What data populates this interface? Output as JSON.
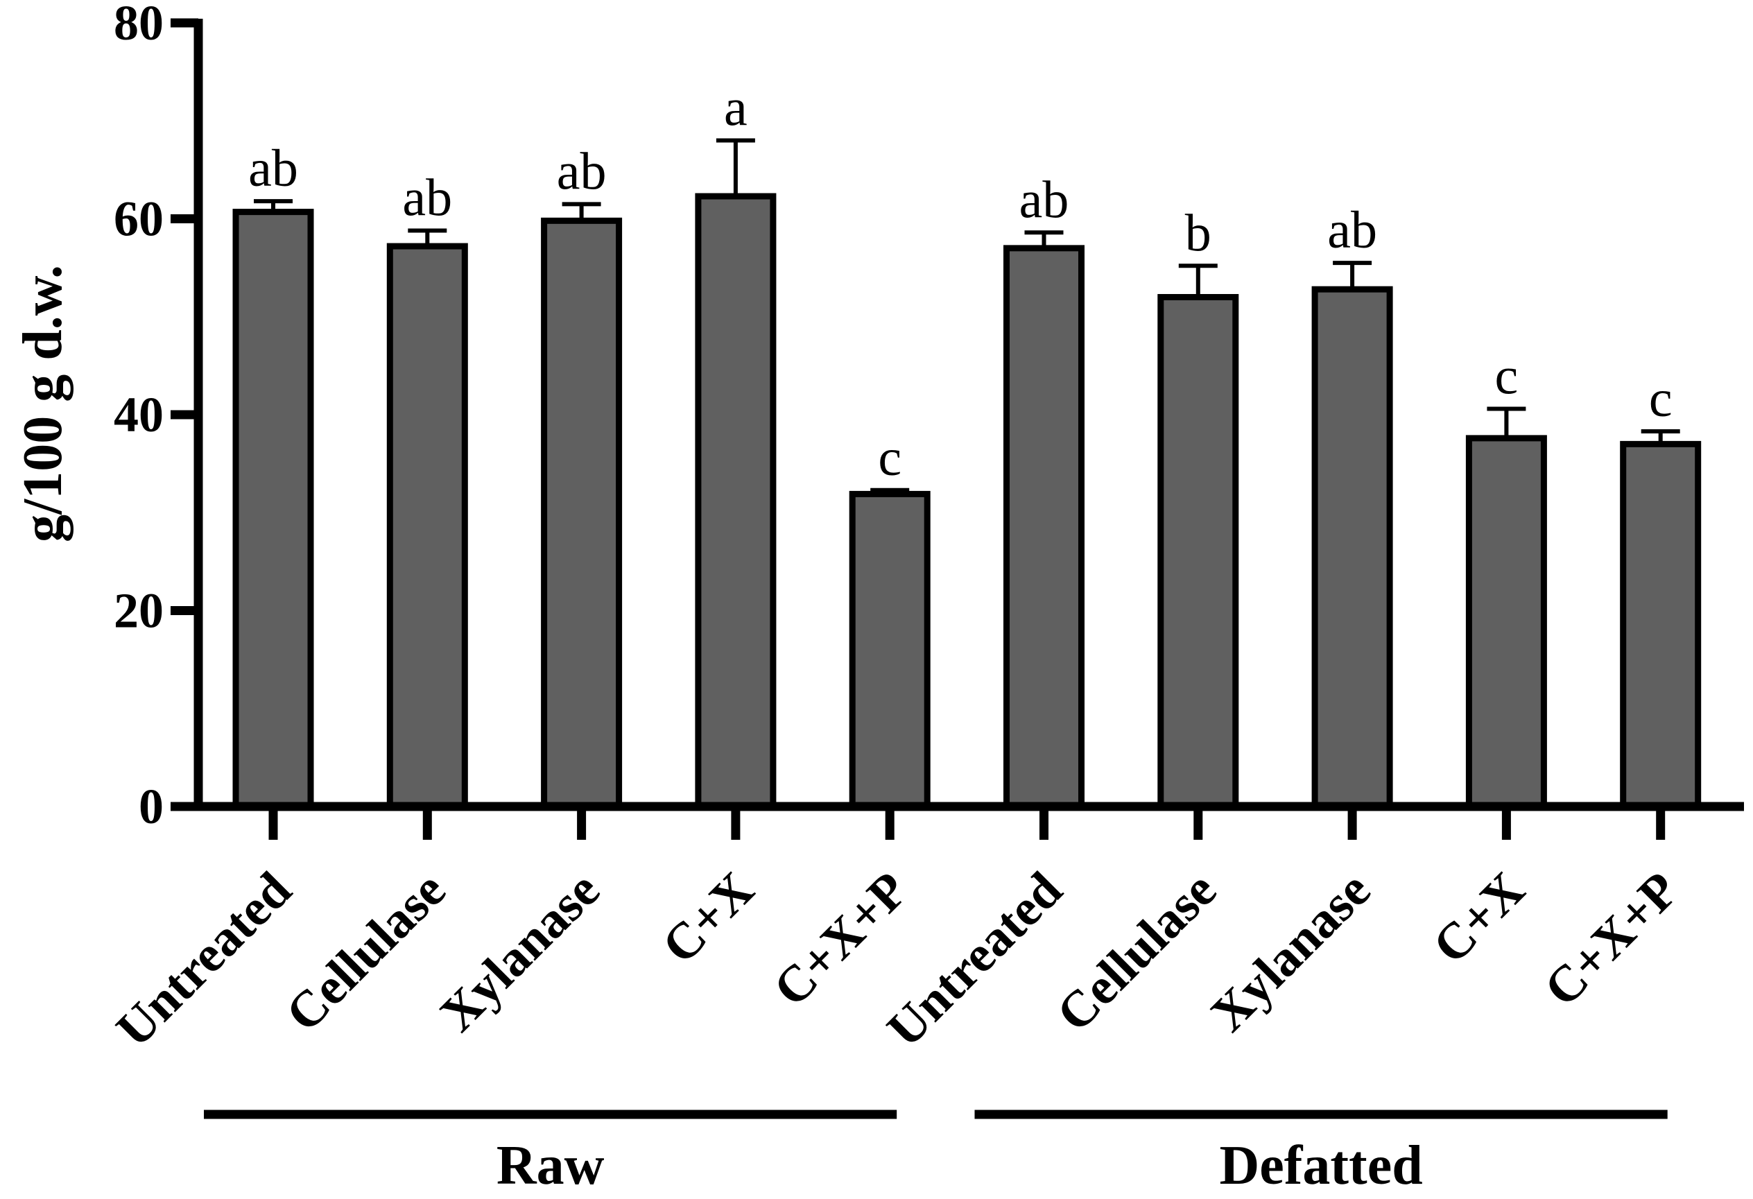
{
  "chart_data": {
    "type": "bar",
    "title": "",
    "xlabel": "",
    "ylabel": "g/100 g d.w.",
    "ylim": [
      0,
      80
    ],
    "yticks": [
      0,
      20,
      40,
      60,
      80
    ],
    "grid": false,
    "bar_color": "#606060",
    "categories": [
      "Untreated",
      "Cellulase",
      "Xylanase",
      "C+X",
      "C+X+P",
      "Untreated",
      "Cellulase",
      "Xylanase",
      "C+X",
      "C+X+P"
    ],
    "values": [
      60.7,
      57.2,
      59.8,
      62.3,
      31.9,
      57.0,
      52.0,
      52.8,
      37.6,
      37.0
    ],
    "errors": [
      1.1,
      1.6,
      1.7,
      5.7,
      0.4,
      1.6,
      3.2,
      2.7,
      3.0,
      1.3
    ],
    "significance": [
      "ab",
      "ab",
      "ab",
      "a",
      "c",
      "ab",
      "b",
      "ab",
      "c",
      "c"
    ],
    "groups": [
      {
        "label": "Raw",
        "start": 0,
        "end": 4
      },
      {
        "label": "Defatted",
        "start": 5,
        "end": 9
      }
    ]
  }
}
